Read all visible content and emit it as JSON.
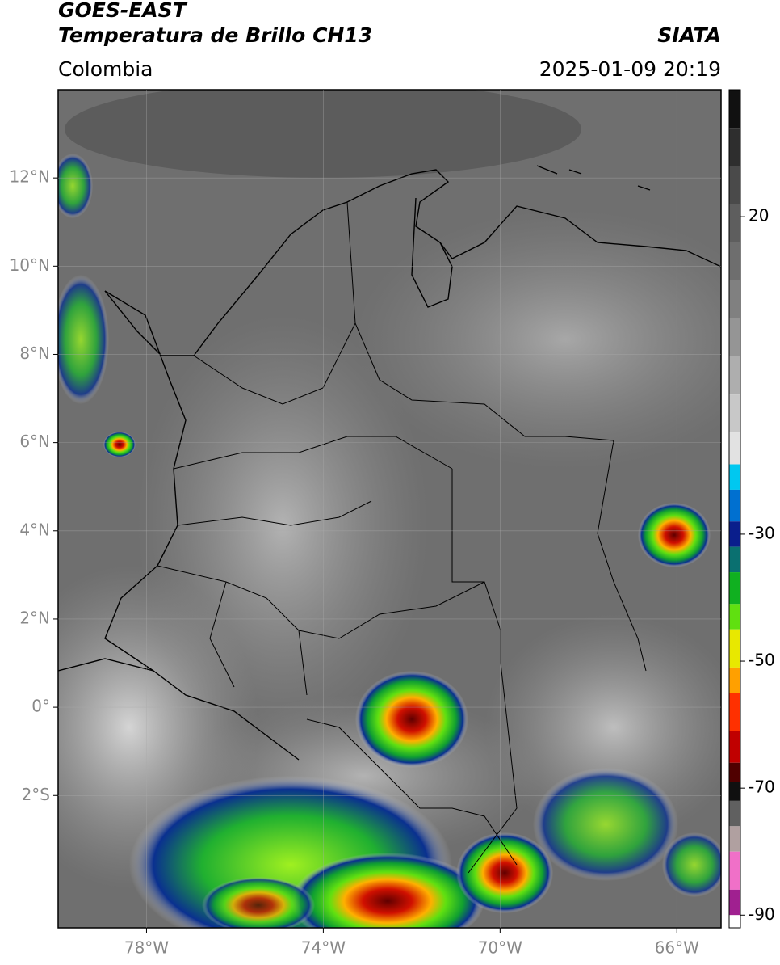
{
  "header": {
    "title": "GOES-EAST",
    "subtitle": "Temperatura de Brillo CH13",
    "region": "Colombia",
    "source": "SIATA",
    "datetime": "2025-01-09 20:19"
  },
  "map": {
    "xlim": [
      -80,
      -65
    ],
    "ylim": [
      -5,
      14
    ],
    "xticks": [
      {
        "value": -78,
        "label": "78°W"
      },
      {
        "value": -74,
        "label": "74°W"
      },
      {
        "value": -70,
        "label": "70°W"
      },
      {
        "value": -66,
        "label": "66°W"
      }
    ],
    "yticks": [
      {
        "value": 12,
        "label": "12°N"
      },
      {
        "value": 10,
        "label": "10°N"
      },
      {
        "value": 8,
        "label": "8°N"
      },
      {
        "value": 6,
        "label": "6°N"
      },
      {
        "value": 4,
        "label": "4°N"
      },
      {
        "value": 2,
        "label": "2°N"
      },
      {
        "value": 0,
        "label": "0°"
      },
      {
        "value": -2,
        "label": "2°S"
      }
    ],
    "grid": true
  },
  "colorbar": {
    "lim": [
      -92,
      40
    ],
    "ticks": [
      20,
      -30,
      -50,
      -70,
      -90
    ],
    "colormap": [
      {
        "value": 40,
        "color": "#111111"
      },
      {
        "value": 34,
        "color": "#2e2e2e"
      },
      {
        "value": 28,
        "color": "#4a4a4a"
      },
      {
        "value": 22,
        "color": "#5e5e5e"
      },
      {
        "value": 16,
        "color": "#6e6e6e"
      },
      {
        "value": 10,
        "color": "#808080"
      },
      {
        "value": 4,
        "color": "#959595"
      },
      {
        "value": -2,
        "color": "#aeaeae"
      },
      {
        "value": -8,
        "color": "#c8c8c8"
      },
      {
        "value": -14,
        "color": "#e2e2e2"
      },
      {
        "value": -19,
        "color": "#00c8f0"
      },
      {
        "value": -23,
        "color": "#0070d0"
      },
      {
        "value": -28,
        "color": "#0a1e8c"
      },
      {
        "value": -32,
        "color": "#0a7070"
      },
      {
        "value": -36,
        "color": "#10b020"
      },
      {
        "value": -41,
        "color": "#60e010"
      },
      {
        "value": -45,
        "color": "#e8e800"
      },
      {
        "value": -51,
        "color": "#ffa000"
      },
      {
        "value": -55,
        "color": "#ff3000"
      },
      {
        "value": -61,
        "color": "#c00000"
      },
      {
        "value": -66,
        "color": "#500000"
      },
      {
        "value": -69,
        "color": "#101010"
      },
      {
        "value": -72,
        "color": "#606060"
      },
      {
        "value": -76,
        "color": "#b0a0a0"
      },
      {
        "value": -80,
        "color": "#f070c8"
      },
      {
        "value": -86,
        "color": "#a02090"
      },
      {
        "value": -90,
        "color": "#ffffff"
      }
    ]
  }
}
